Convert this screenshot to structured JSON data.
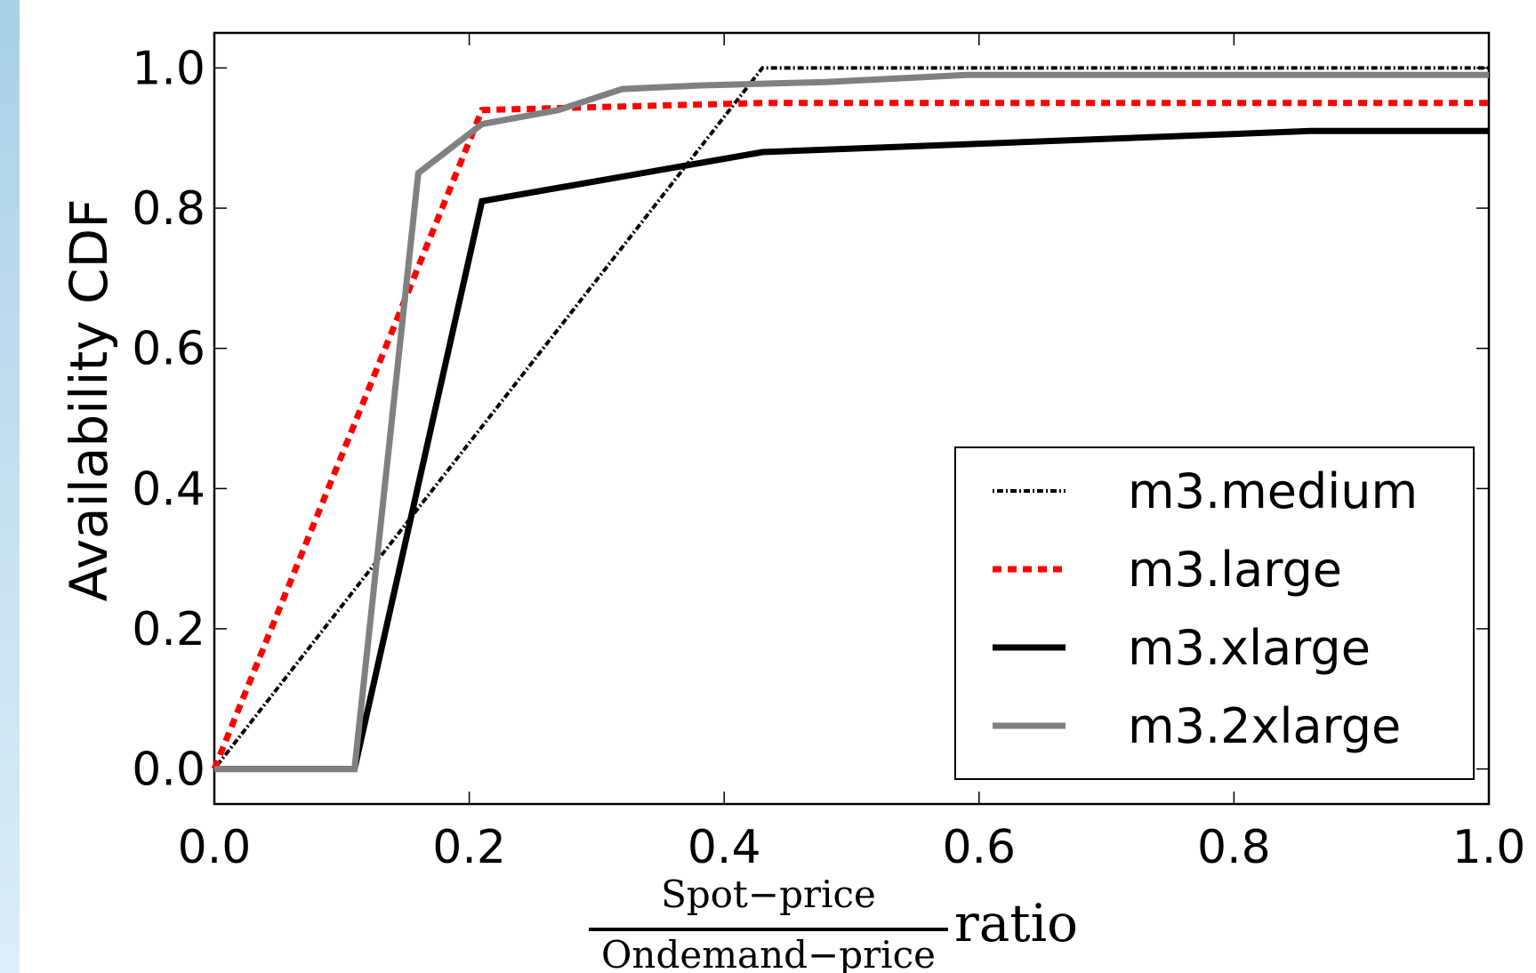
{
  "chart_data": {
    "type": "line",
    "title": "",
    "ylabel": "Availability CDF",
    "xlabel": {
      "numerator": "Spot−price",
      "denominator": "Ondemand−price",
      "suffix": "ratio"
    },
    "xlim": [
      0.0,
      1.0
    ],
    "ylim": [
      -0.05,
      1.05
    ],
    "xticks": [
      "0.0",
      "0.2",
      "0.4",
      "0.6",
      "0.8",
      "1.0"
    ],
    "yticks": [
      "0.0",
      "0.2",
      "0.4",
      "0.6",
      "0.8",
      "1.0"
    ],
    "grid": false,
    "legend_position": "lower-right",
    "series": [
      {
        "name": "m3.medium",
        "color": "#000000",
        "style": "dashdot",
        "points": [
          [
            0.0,
            0.0
          ],
          [
            0.43,
            1.0
          ],
          [
            1.0,
            1.0
          ]
        ]
      },
      {
        "name": "m3.large",
        "color": "#ff0000",
        "style": "dotted",
        "points": [
          [
            0.0,
            0.0
          ],
          [
            0.21,
            0.94
          ],
          [
            0.43,
            0.95
          ],
          [
            1.0,
            0.95
          ]
        ]
      },
      {
        "name": "m3.xlarge",
        "color": "#000000",
        "style": "solid",
        "points": [
          [
            0.0,
            0.0
          ],
          [
            0.11,
            0.0
          ],
          [
            0.21,
            0.81
          ],
          [
            0.43,
            0.88
          ],
          [
            0.86,
            0.91
          ],
          [
            1.0,
            0.91
          ]
        ]
      },
      {
        "name": "m3.2xlarge",
        "color": "#808080",
        "style": "solid",
        "points": [
          [
            0.0,
            0.0
          ],
          [
            0.11,
            0.0
          ],
          [
            0.16,
            0.85
          ],
          [
            0.21,
            0.92
          ],
          [
            0.27,
            0.94
          ],
          [
            0.32,
            0.97
          ],
          [
            0.38,
            0.975
          ],
          [
            0.48,
            0.98
          ],
          [
            0.59,
            0.99
          ],
          [
            1.0,
            0.99
          ]
        ]
      }
    ]
  }
}
